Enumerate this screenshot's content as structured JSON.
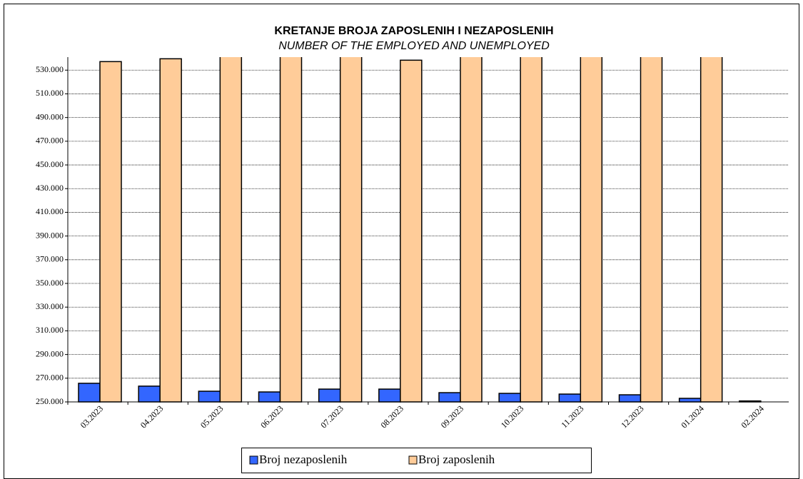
{
  "chart_data": {
    "type": "bar",
    "title": "KRETANJE BROJA ZAPOSLENIH I NEZAPOSLENIH",
    "subtitle": "NUMBER OF THE EMPLOYED AND UNEMPLOYED",
    "categories": [
      "03.2023",
      "04.2023",
      "05.2023",
      "06.2023",
      "07.2023",
      "08.2023",
      "09.2023",
      "10.2023",
      "11.2023",
      "12.2023",
      "01.2024",
      "02.2024"
    ],
    "series": [
      {
        "name": "Broj nezaposlenih",
        "color": "#3366ff",
        "values": [
          265700,
          263300,
          259000,
          258400,
          260800,
          260800,
          257800,
          257200,
          256600,
          256000,
          253000,
          250800
        ]
      },
      {
        "name": "Broj zaposlenih",
        "color": "#ffcc99",
        "values": [
          537200,
          539600,
          543000,
          543000,
          543000,
          538400,
          543000,
          543000,
          543000,
          543000,
          543000,
          null
        ]
      }
    ],
    "ylim": [
      250000,
      541000
    ],
    "yticks": [
      {
        "value": 250000,
        "label": "250.000"
      },
      {
        "value": 270000,
        "label": "270.000"
      },
      {
        "value": 290000,
        "label": "290.000"
      },
      {
        "value": 310000,
        "label": "310.000"
      },
      {
        "value": 330000,
        "label": "330.000"
      },
      {
        "value": 350000,
        "label": "350.000"
      },
      {
        "value": 370000,
        "label": "370.000"
      },
      {
        "value": 390000,
        "label": "390.000"
      },
      {
        "value": 410000,
        "label": "410.000"
      },
      {
        "value": 430000,
        "label": "430.000"
      },
      {
        "value": 450000,
        "label": "450.000"
      },
      {
        "value": 470000,
        "label": "470.000"
      },
      {
        "value": 490000,
        "label": "490.000"
      },
      {
        "value": 510000,
        "label": "510.000"
      },
      {
        "value": 530000,
        "label": "530.000"
      }
    ],
    "grid": true,
    "legend": "bottom"
  }
}
